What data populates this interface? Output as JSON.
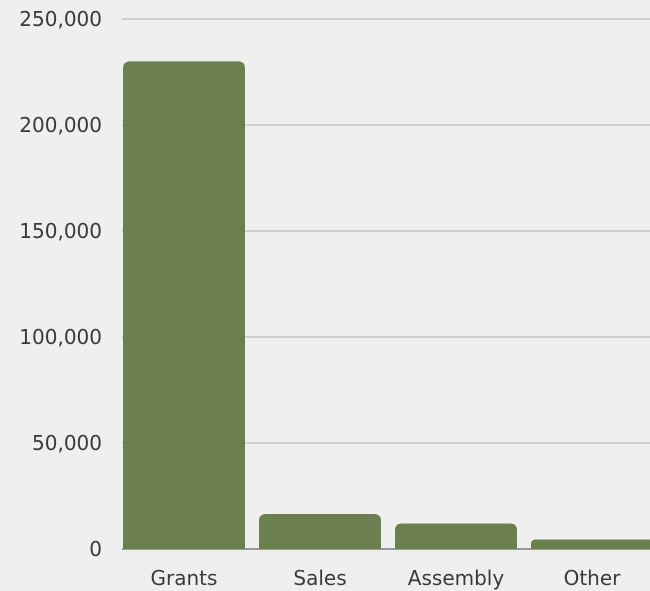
{
  "chart_data": {
    "type": "bar",
    "title": "",
    "xlabel": "",
    "ylabel": "",
    "categories": [
      "Grants",
      "Sales",
      "Assembly",
      "Other"
    ],
    "values": [
      230000,
      16500,
      12000,
      4500
    ],
    "ylim": [
      0,
      250000
    ],
    "yticks": [
      0,
      50000,
      100000,
      150000,
      200000,
      250000
    ],
    "ytick_labels": [
      "0",
      "50,000",
      "100,000",
      "150,000",
      "200,000",
      "250,000"
    ],
    "grid": true,
    "legend": "none",
    "colors": {
      "bar": "#6b804e",
      "grid": "#c4c4c4",
      "axis": "#9a9a9a",
      "text": "#3a3a3a",
      "background": "#efefef"
    }
  }
}
